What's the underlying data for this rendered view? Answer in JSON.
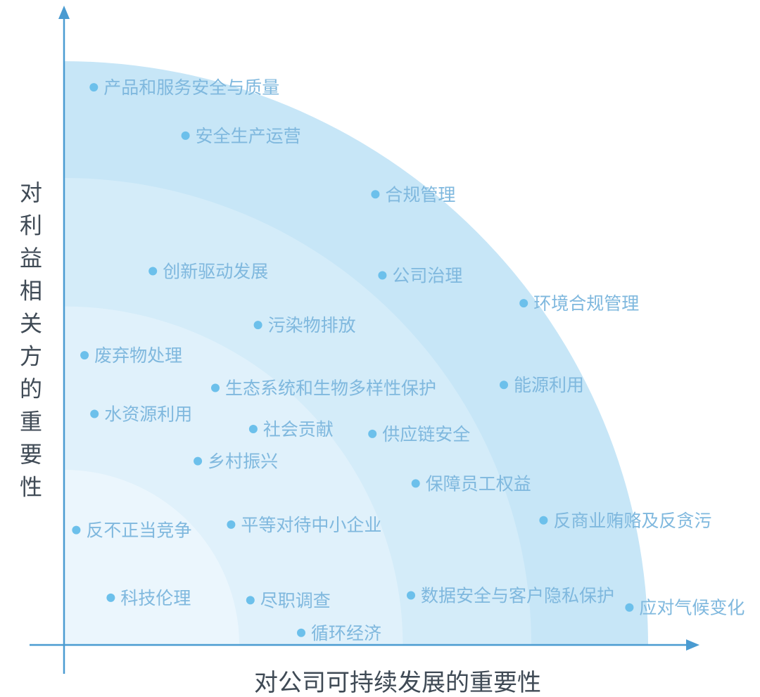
{
  "chart_data": {
    "type": "scatter",
    "title": "",
    "xlabel": "对公司可持续发展的重要性",
    "ylabel": "对利益相关方的重要性",
    "xlim": [
      0,
      100
    ],
    "ylim": [
      0,
      100
    ],
    "grid": false,
    "points": [
      {
        "label": "产品和服务安全与质量",
        "x": 5.1,
        "y": 92.2
      },
      {
        "label": "安全生产运营",
        "x": 20.8,
        "y": 84.2
      },
      {
        "label": "合规管理",
        "x": 53.3,
        "y": 74.5
      },
      {
        "label": "创新驱动发展",
        "x": 15.2,
        "y": 61.8
      },
      {
        "label": "公司治理",
        "x": 54.5,
        "y": 61.1
      },
      {
        "label": "环境合规管理",
        "x": 78.7,
        "y": 56.5
      },
      {
        "label": "污染物排放",
        "x": 33.2,
        "y": 52.9
      },
      {
        "label": "废弃物处理",
        "x": 3.5,
        "y": 47.9
      },
      {
        "label": "生态系统和生物多样性保护",
        "x": 25.9,
        "y": 42.5
      },
      {
        "label": "能源利用",
        "x": 75.3,
        "y": 43.0
      },
      {
        "label": "水资源利用",
        "x": 5.2,
        "y": 38.2
      },
      {
        "label": "社会贡献",
        "x": 32.4,
        "y": 35.7
      },
      {
        "label": "供应链安全",
        "x": 52.8,
        "y": 34.9
      },
      {
        "label": "乡村振兴",
        "x": 22.9,
        "y": 30.4
      },
      {
        "label": "保障员工权益",
        "x": 60.2,
        "y": 26.7
      },
      {
        "label": "反商业贿赂及反贪污",
        "x": 82.1,
        "y": 20.6
      },
      {
        "label": "平等对待中小企业",
        "x": 28.6,
        "y": 19.9
      },
      {
        "label": "反不正当竞争",
        "x": 2.1,
        "y": 19.0
      },
      {
        "label": "科技伦理",
        "x": 8.0,
        "y": 7.8
      },
      {
        "label": "尽职调查",
        "x": 31.9,
        "y": 7.4
      },
      {
        "label": "数据安全与客户隐私保护",
        "x": 59.4,
        "y": 8.2
      },
      {
        "label": "应对气候变化",
        "x": 96.8,
        "y": 6.2
      },
      {
        "label": "循环经济",
        "x": 40.6,
        "y": 2.0
      }
    ],
    "zones": [
      {
        "color": "#c7e6f7",
        "radius": 100
      },
      {
        "color": "#d4ecf9",
        "radius": 80
      },
      {
        "color": "#e0f1fb",
        "radius": 58
      },
      {
        "color": "#ebf6fd",
        "radius": 30
      }
    ],
    "colors": {
      "axis": "#4a9bd1",
      "dot": "#6cc0eb",
      "label": "#7fb8de",
      "title": "#3f4a55"
    }
  }
}
